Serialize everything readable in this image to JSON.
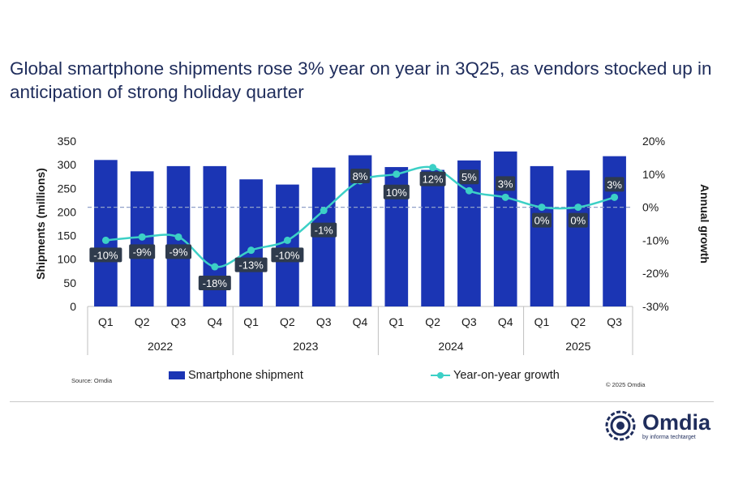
{
  "title": "Global smartphone shipments rose 3% year on year in 3Q25, as vendors stocked up in anticipation of strong holiday quarter",
  "source": "Source: Omdia",
  "copyright": "© 2025 Omdia",
  "logo": {
    "name": "Omdia",
    "subtitle": "by informa techtarget"
  },
  "colors": {
    "bar": "#1b35b4",
    "line": "#3cd0c6",
    "label_bg": "#2f3b4d",
    "title": "#1f2d5c"
  },
  "chart_data": {
    "type": "bar",
    "ylabel": "Shipments (millions)",
    "y2label": "Annual growth",
    "ylim": [
      0,
      350
    ],
    "y_ticks": [
      "0",
      "50",
      "100",
      "150",
      "200",
      "250",
      "300",
      "350"
    ],
    "y2lim": [
      -30,
      20
    ],
    "y2_ticks": [
      "-30%",
      "-20%",
      "-10%",
      "0%",
      "10%",
      "20%"
    ],
    "quarters": [
      "Q1",
      "Q2",
      "Q3",
      "Q4",
      "Q1",
      "Q2",
      "Q3",
      "Q4",
      "Q1",
      "Q2",
      "Q3",
      "Q4",
      "Q1",
      "Q2",
      "Q3"
    ],
    "years": [
      {
        "label": "2022",
        "count": 4
      },
      {
        "label": "2023",
        "count": 4
      },
      {
        "label": "2024",
        "count": 4
      },
      {
        "label": "2025",
        "count": 3
      }
    ],
    "series": [
      {
        "name": "Smartphone shipment",
        "type": "bar",
        "values": [
          310,
          286,
          297,
          297,
          269,
          258,
          294,
          320,
          295,
          289,
          309,
          328,
          297,
          288,
          318
        ]
      },
      {
        "name": "Year-on-year growth",
        "type": "line",
        "values": [
          -10,
          -9,
          -9,
          -18,
          -13,
          -10,
          -1,
          8,
          10,
          12,
          5,
          3,
          0,
          0,
          3
        ],
        "labels": [
          "-10%",
          "-9%",
          "-9%",
          "-18%",
          "-13%",
          "-10%",
          "-1%",
          "8%",
          "10%",
          "12%",
          "5%",
          "3%",
          "0%",
          "0%",
          "3%"
        ]
      }
    ],
    "legend": [
      "Smartphone shipment",
      "Year-on-year growth"
    ],
    "legend_position": "bottom",
    "grid": false
  }
}
